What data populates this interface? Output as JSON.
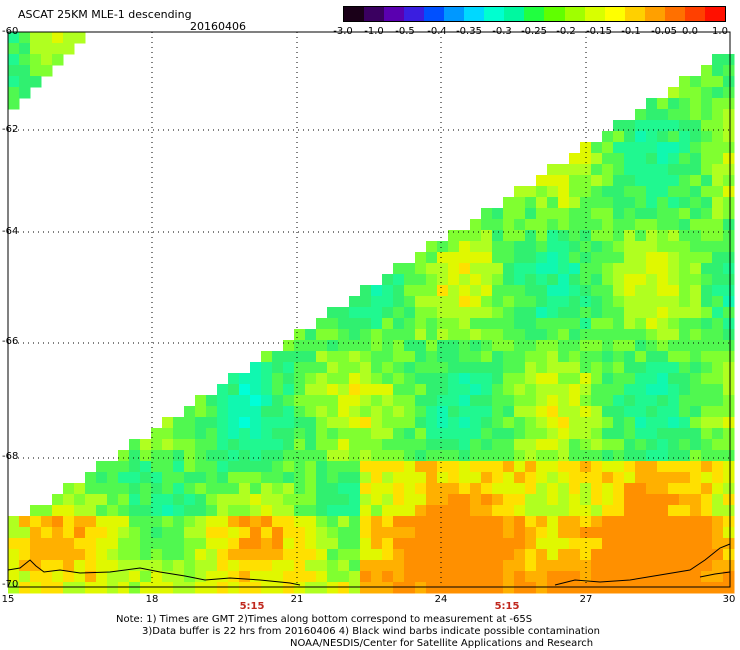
{
  "title": "ASCAT 25KM MLE-1 descending",
  "date": "20160406",
  "colorbar": {
    "labels": [
      "-3.0",
      "-1.0",
      "-0.5",
      "-0.4",
      "-0.35",
      "-0.3",
      "-0.25",
      "-0.2",
      "-0.15",
      "-0.1",
      "-0.05",
      "0.0",
      "1.0"
    ],
    "colors": [
      "#1a0018",
      "#3a0060",
      "#5a00b0",
      "#3a1ee0",
      "#0050ff",
      "#0098ff",
      "#00d8ff",
      "#00ffd0",
      "#00f8a0",
      "#20ff40",
      "#60ff00",
      "#a0ff00",
      "#d8ff00",
      "#ffff00",
      "#ffd000",
      "#ffa000",
      "#ff7000",
      "#ff4000",
      "#ff1000"
    ]
  },
  "axes": {
    "lat_labels": [
      "-60",
      "-62",
      "-64",
      "-66",
      "-68",
      "-70"
    ],
    "lon_labels": [
      "15",
      "18",
      "21",
      "24",
      "27",
      "30"
    ]
  },
  "times": [
    "5:15",
    "5:15"
  ],
  "notes": {
    "line1": "Note: 1) Times are GMT 2)Times along bottom correspond to measurement at -65S",
    "line2": "3)Data buffer is 22 hrs from 20160406 4) Black wind barbs indicate possible contamination",
    "line3": "NOAA/NESDIS/Center for Satellite Applications and Research"
  }
}
